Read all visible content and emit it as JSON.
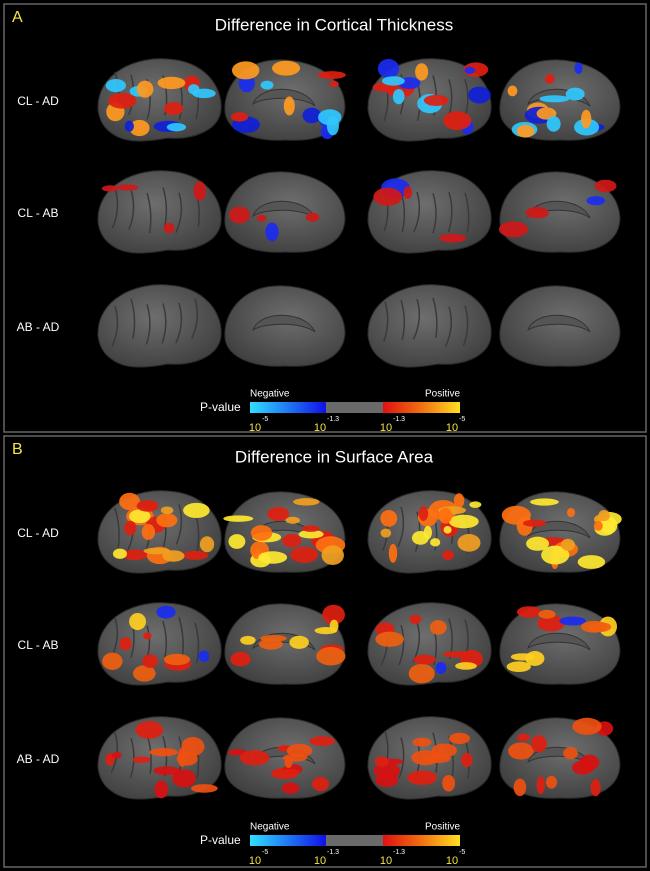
{
  "panels": [
    {
      "label": "A",
      "title": "Difference in Cortical Thickness",
      "rows": [
        "CL - AD",
        "CL - AB",
        "AB - AD"
      ],
      "colorbar": {
        "title": "P-value",
        "negative": "Negative",
        "positive": "Positive",
        "ticks": [
          {
            "base": "10",
            "exponent": "-5"
          },
          {
            "base": "10",
            "exponent": "-1.3"
          },
          {
            "base": "10",
            "exponent": "-1.3"
          },
          {
            "base": "10",
            "exponent": "-5"
          }
        ]
      }
    },
    {
      "label": "B",
      "title": "Difference in Surface Area",
      "rows": [
        "CL - AD",
        "CL - AB",
        "AB - AD"
      ],
      "colorbar": {
        "title": "P-value",
        "negative": "Negative",
        "positive": "Positive",
        "ticks": [
          {
            "base": "10",
            "exponent": "-5"
          },
          {
            "base": "10",
            "exponent": "-1.3"
          },
          {
            "base": "10",
            "exponent": "-1.3"
          },
          {
            "base": "10",
            "exponent": "-5"
          }
        ]
      }
    }
  ]
}
